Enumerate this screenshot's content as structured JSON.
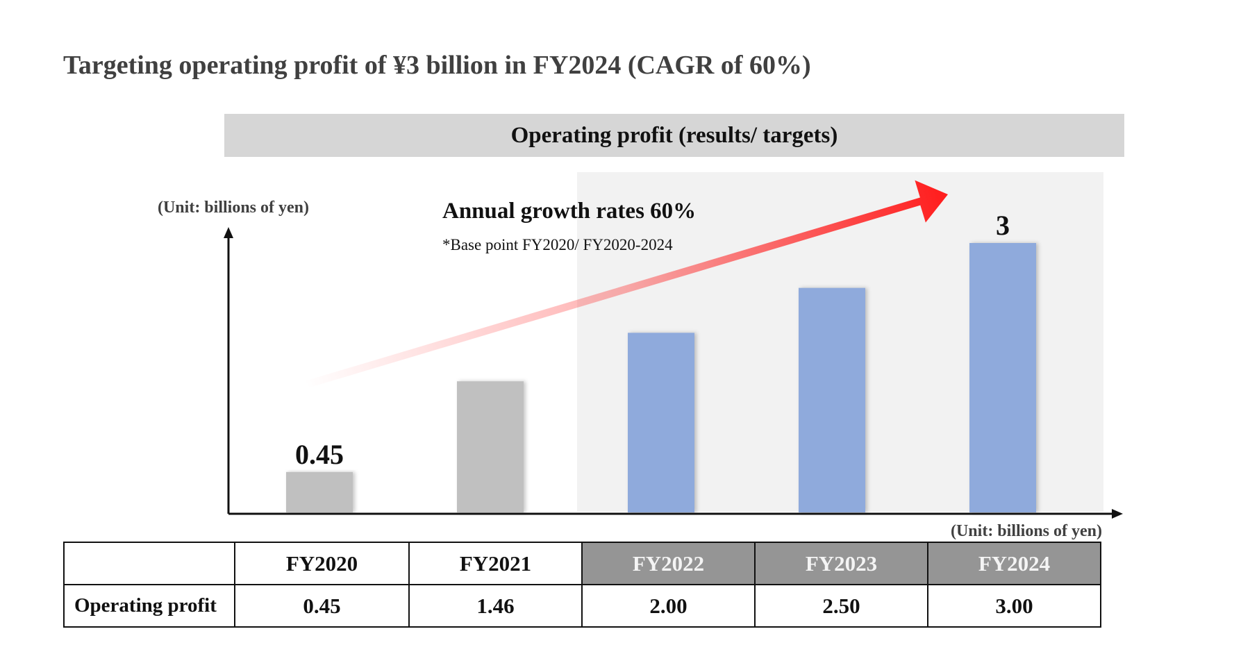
{
  "page": {
    "title": "Targeting operating profit of ¥3 billion in FY2024 (CAGR of 60%)",
    "chart_header": "Operating profit (results/ targets)"
  },
  "annotations": {
    "unit_axis": "(Unit: billions of yen)",
    "unit_table": "(Unit: billions of yen)",
    "growth_title": "Annual growth rates 60%",
    "growth_note": "*Base point FY2020/ FY2020-2024"
  },
  "colors": {
    "result_bar": "#c0c0c0",
    "target_bar": "#8faadc",
    "target_background": "#f2f2f2",
    "arrow": "#ff1f1f",
    "table_target_header": "#959595"
  },
  "chart_data": {
    "type": "bar",
    "categories": [
      "FY2020",
      "FY2021",
      "FY2022",
      "FY2023",
      "FY2024"
    ],
    "values": [
      0.45,
      1.46,
      2.0,
      2.5,
      3.0
    ],
    "kinds": [
      "result",
      "result",
      "target",
      "target",
      "target"
    ],
    "data_labels": [
      "0.45",
      "",
      "",
      "",
      "3"
    ],
    "title": "Operating profit (results/ targets)",
    "ylabel": "(Unit: billions of yen)",
    "ylim": [
      0,
      3.0
    ],
    "grid": false,
    "legend": "none"
  },
  "table": {
    "header": [
      "",
      "FY2020",
      "FY2021",
      "FY2022",
      "FY2023",
      "FY2024"
    ],
    "header_kinds": [
      "blank",
      "result",
      "result",
      "target",
      "target",
      "target"
    ],
    "rows": [
      {
        "label": "Operating profit",
        "values": [
          "0.45",
          "1.46",
          "2.00",
          "2.50",
          "3.00"
        ]
      }
    ]
  }
}
